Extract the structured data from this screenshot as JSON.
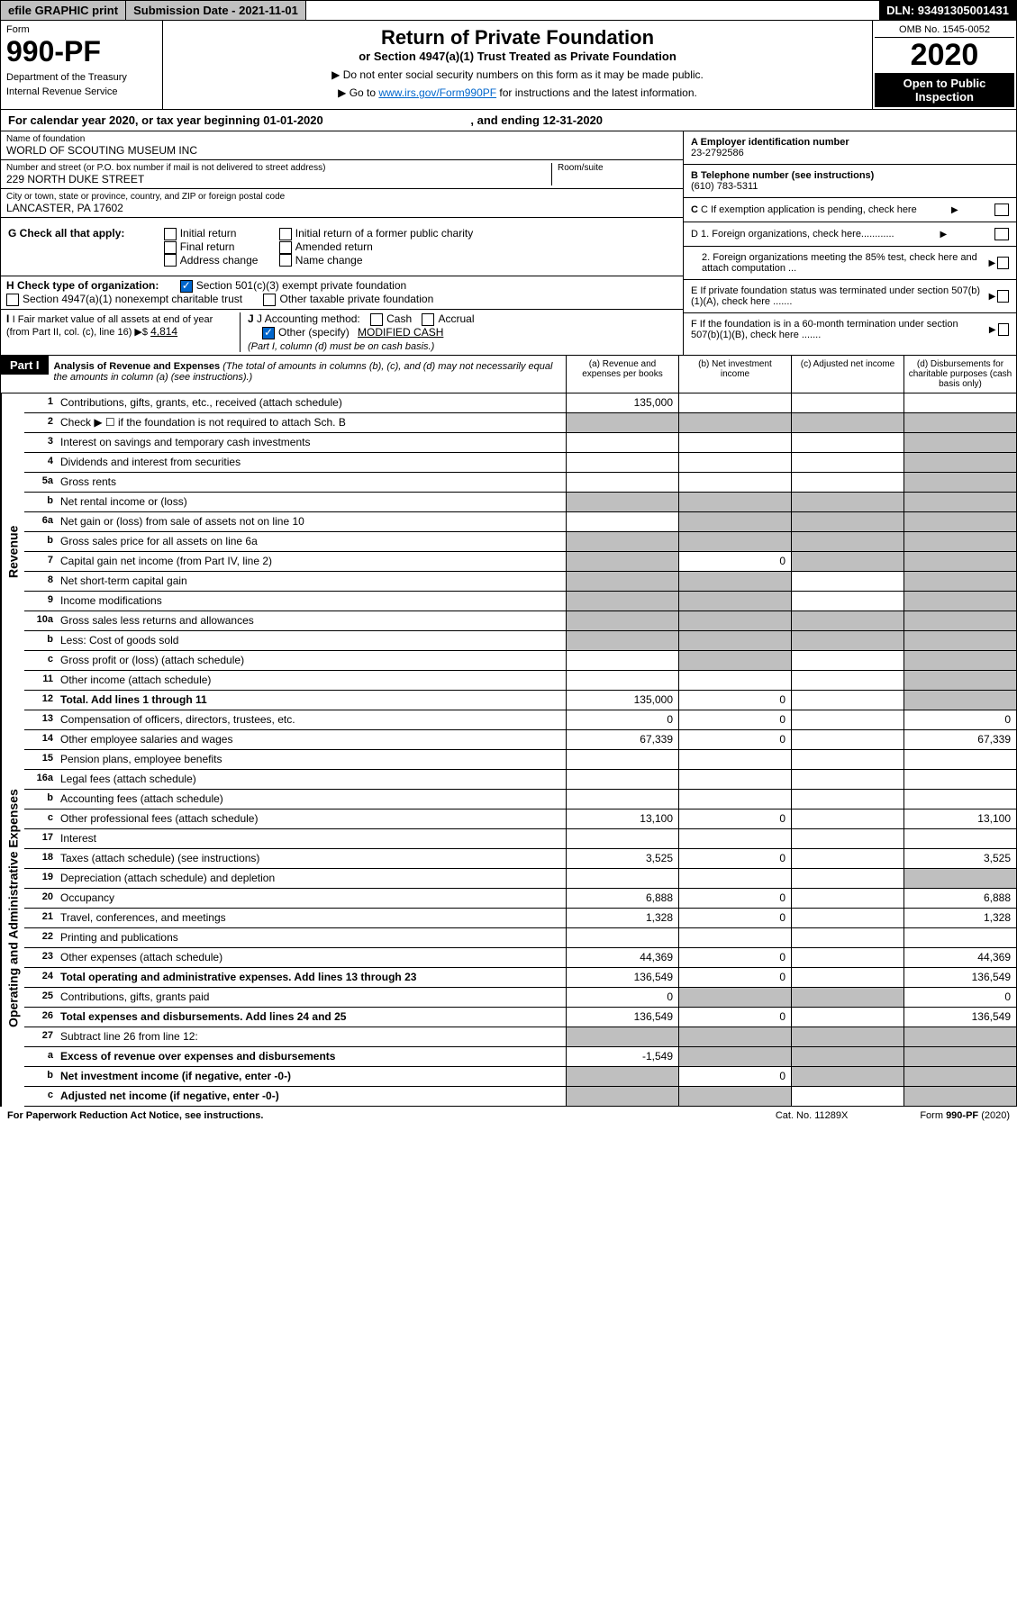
{
  "topbar": {
    "efile": "efile GRAPHIC print",
    "subdate_label": "Submission Date - ",
    "subdate": "2021-11-01",
    "dln_label": "DLN: ",
    "dln": "93491305001431"
  },
  "header": {
    "form": "Form",
    "num": "990-PF",
    "dept": "Department of the Treasury",
    "irs": "Internal Revenue Service",
    "title": "Return of Private Foundation",
    "sub": "or Section 4947(a)(1) Trust Treated as Private Foundation",
    "note1": "▶ Do not enter social security numbers on this form as it may be made public.",
    "note2_pre": "▶ Go to ",
    "note2_link": "www.irs.gov/Form990PF",
    "note2_post": " for instructions and the latest information.",
    "omb": "OMB No. 1545-0052",
    "year": "2020",
    "open": "Open to Public Inspection"
  },
  "cal": {
    "text_pre": "For calendar year 2020, or tax year beginning ",
    "begin": "01-01-2020",
    "text_mid": " , and ending ",
    "end": "12-31-2020"
  },
  "info": {
    "name_lbl": "Name of foundation",
    "name": "WORLD OF SCOUTING MUSEUM INC",
    "addr_lbl": "Number and street (or P.O. box number if mail is not delivered to street address)",
    "addr": "229 NORTH DUKE STREET",
    "room_lbl": "Room/suite",
    "room": "",
    "city_lbl": "City or town, state or province, country, and ZIP or foreign postal code",
    "city": "LANCASTER, PA  17602",
    "a_lbl": "A Employer identification number",
    "a_val": "23-2792586",
    "b_lbl": "B Telephone number (see instructions)",
    "b_val": "(610) 783-5311",
    "c_lbl": "C If exemption application is pending, check here",
    "d1_lbl": "D 1. Foreign organizations, check here............",
    "d2_lbl": "2. Foreign organizations meeting the 85% test, check here and attach computation ...",
    "e_lbl": "E  If private foundation status was terminated under section 507(b)(1)(A), check here .......",
    "f_lbl": "F  If the foundation is in a 60-month termination under section 507(b)(1)(B), check here .......",
    "g_lbl": "G Check all that apply:",
    "g_opts": [
      "Initial return",
      "Final return",
      "Address change",
      "Initial return of a former public charity",
      "Amended return",
      "Name change"
    ],
    "h_lbl": "H Check type of organization:",
    "h_opt1": "Section 501(c)(3) exempt private foundation",
    "h_opt2": "Section 4947(a)(1) nonexempt charitable trust",
    "h_opt3": "Other taxable private foundation",
    "i_lbl": "I Fair market value of all assets at end of year (from Part II, col. (c), line 16) ▶$ ",
    "i_val": "4,814",
    "j_lbl": "J Accounting method:",
    "j_cash": "Cash",
    "j_acc": "Accrual",
    "j_other": "Other (specify)",
    "j_other_val": "MODIFIED CASH",
    "j_note": "(Part I, column (d) must be on cash basis.)"
  },
  "part1": {
    "label": "Part I",
    "title": "Analysis of Revenue and Expenses",
    "note": " (The total of amounts in columns (b), (c), and (d) may not necessarily equal the amounts in column (a) (see instructions).)",
    "cols": {
      "a": "(a) Revenue and expenses per books",
      "b": "(b) Net investment income",
      "c": "(c) Adjusted net income",
      "d": "(d) Disbursements for charitable purposes (cash basis only)"
    }
  },
  "revenue_label": "Revenue",
  "expenses_label": "Operating and Administrative Expenses",
  "rows": [
    {
      "n": "1",
      "t": "Contributions, gifts, grants, etc., received (attach schedule)",
      "a": "135,000",
      "b": "",
      "c": "",
      "d": "",
      "sh": [
        "",
        "d",
        "d",
        "d"
      ]
    },
    {
      "n": "2",
      "t": "Check ▶ ☐ if the foundation is not required to attach Sch. B",
      "a": "",
      "b": "",
      "c": "",
      "d": "",
      "sh": [
        "s",
        "s",
        "s",
        "s"
      ]
    },
    {
      "n": "3",
      "t": "Interest on savings and temporary cash investments",
      "a": "",
      "b": "",
      "c": "",
      "d": "",
      "sh": [
        "",
        "",
        "",
        "s"
      ]
    },
    {
      "n": "4",
      "t": "Dividends and interest from securities",
      "a": "",
      "b": "",
      "c": "",
      "d": "",
      "sh": [
        "",
        "",
        "",
        "s"
      ]
    },
    {
      "n": "5a",
      "t": "Gross rents",
      "a": "",
      "b": "",
      "c": "",
      "d": "",
      "sh": [
        "",
        "",
        "",
        "s"
      ]
    },
    {
      "n": "b",
      "t": "Net rental income or (loss)",
      "a": "",
      "b": "",
      "c": "",
      "d": "",
      "sh": [
        "s",
        "s",
        "s",
        "s"
      ]
    },
    {
      "n": "6a",
      "t": "Net gain or (loss) from sale of assets not on line 10",
      "a": "",
      "b": "",
      "c": "",
      "d": "",
      "sh": [
        "",
        "s",
        "s",
        "s"
      ]
    },
    {
      "n": "b",
      "t": "Gross sales price for all assets on line 6a",
      "a": "",
      "b": "",
      "c": "",
      "d": "",
      "sh": [
        "s",
        "s",
        "s",
        "s"
      ]
    },
    {
      "n": "7",
      "t": "Capital gain net income (from Part IV, line 2)",
      "a": "",
      "b": "0",
      "c": "",
      "d": "",
      "sh": [
        "s",
        "",
        "s",
        "s"
      ]
    },
    {
      "n": "8",
      "t": "Net short-term capital gain",
      "a": "",
      "b": "",
      "c": "",
      "d": "",
      "sh": [
        "s",
        "s",
        "",
        "s"
      ]
    },
    {
      "n": "9",
      "t": "Income modifications",
      "a": "",
      "b": "",
      "c": "",
      "d": "",
      "sh": [
        "s",
        "s",
        "",
        "s"
      ]
    },
    {
      "n": "10a",
      "t": "Gross sales less returns and allowances",
      "a": "",
      "b": "",
      "c": "",
      "d": "",
      "sh": [
        "s",
        "s",
        "s",
        "s"
      ]
    },
    {
      "n": "b",
      "t": "Less: Cost of goods sold",
      "a": "",
      "b": "",
      "c": "",
      "d": "",
      "sh": [
        "s",
        "s",
        "s",
        "s"
      ]
    },
    {
      "n": "c",
      "t": "Gross profit or (loss) (attach schedule)",
      "a": "",
      "b": "",
      "c": "",
      "d": "",
      "sh": [
        "",
        "s",
        "",
        "s"
      ]
    },
    {
      "n": "11",
      "t": "Other income (attach schedule)",
      "a": "",
      "b": "",
      "c": "",
      "d": "",
      "sh": [
        "",
        "",
        "",
        "s"
      ]
    },
    {
      "n": "12",
      "t": "Total. Add lines 1 through 11",
      "a": "135,000",
      "b": "0",
      "c": "",
      "d": "",
      "sh": [
        "",
        "",
        "",
        "s"
      ],
      "bold": true
    }
  ],
  "exp_rows": [
    {
      "n": "13",
      "t": "Compensation of officers, directors, trustees, etc.",
      "a": "0",
      "b": "0",
      "c": "",
      "d": "0"
    },
    {
      "n": "14",
      "t": "Other employee salaries and wages",
      "a": "67,339",
      "b": "0",
      "c": "",
      "d": "67,339"
    },
    {
      "n": "15",
      "t": "Pension plans, employee benefits",
      "a": "",
      "b": "",
      "c": "",
      "d": ""
    },
    {
      "n": "16a",
      "t": "Legal fees (attach schedule)",
      "a": "",
      "b": "",
      "c": "",
      "d": ""
    },
    {
      "n": "b",
      "t": "Accounting fees (attach schedule)",
      "a": "",
      "b": "",
      "c": "",
      "d": ""
    },
    {
      "n": "c",
      "t": "Other professional fees (attach schedule)",
      "a": "13,100",
      "b": "0",
      "c": "",
      "d": "13,100"
    },
    {
      "n": "17",
      "t": "Interest",
      "a": "",
      "b": "",
      "c": "",
      "d": ""
    },
    {
      "n": "18",
      "t": "Taxes (attach schedule) (see instructions)",
      "a": "3,525",
      "b": "0",
      "c": "",
      "d": "3,525"
    },
    {
      "n": "19",
      "t": "Depreciation (attach schedule) and depletion",
      "a": "",
      "b": "",
      "c": "",
      "d": "",
      "sh": [
        "",
        "",
        "",
        "s"
      ]
    },
    {
      "n": "20",
      "t": "Occupancy",
      "a": "6,888",
      "b": "0",
      "c": "",
      "d": "6,888"
    },
    {
      "n": "21",
      "t": "Travel, conferences, and meetings",
      "a": "1,328",
      "b": "0",
      "c": "",
      "d": "1,328"
    },
    {
      "n": "22",
      "t": "Printing and publications",
      "a": "",
      "b": "",
      "c": "",
      "d": ""
    },
    {
      "n": "23",
      "t": "Other expenses (attach schedule)",
      "a": "44,369",
      "b": "0",
      "c": "",
      "d": "44,369"
    },
    {
      "n": "24",
      "t": "Total operating and administrative expenses. Add lines 13 through 23",
      "a": "136,549",
      "b": "0",
      "c": "",
      "d": "136,549",
      "bold": true
    },
    {
      "n": "25",
      "t": "Contributions, gifts, grants paid",
      "a": "0",
      "b": "",
      "c": "",
      "d": "0",
      "sh": [
        "",
        "s",
        "s",
        ""
      ]
    },
    {
      "n": "26",
      "t": "Total expenses and disbursements. Add lines 24 and 25",
      "a": "136,549",
      "b": "0",
      "c": "",
      "d": "136,549",
      "bold": true
    },
    {
      "n": "27",
      "t": "Subtract line 26 from line 12:",
      "a": "",
      "b": "",
      "c": "",
      "d": "",
      "sh": [
        "s",
        "s",
        "s",
        "s"
      ]
    },
    {
      "n": "a",
      "t": "Excess of revenue over expenses and disbursements",
      "a": "-1,549",
      "b": "",
      "c": "",
      "d": "",
      "sh": [
        "",
        "s",
        "s",
        "s"
      ],
      "bold": true
    },
    {
      "n": "b",
      "t": "Net investment income (if negative, enter -0-)",
      "a": "",
      "b": "0",
      "c": "",
      "d": "",
      "sh": [
        "s",
        "",
        "s",
        "s"
      ],
      "bold": true
    },
    {
      "n": "c",
      "t": "Adjusted net income (if negative, enter -0-)",
      "a": "",
      "b": "",
      "c": "",
      "d": "",
      "sh": [
        "s",
        "s",
        "",
        "s"
      ],
      "bold": true
    }
  ],
  "foot": {
    "left": "For Paperwork Reduction Act Notice, see instructions.",
    "mid": "Cat. No. 11289X",
    "right": "Form 990-PF (2020)"
  }
}
